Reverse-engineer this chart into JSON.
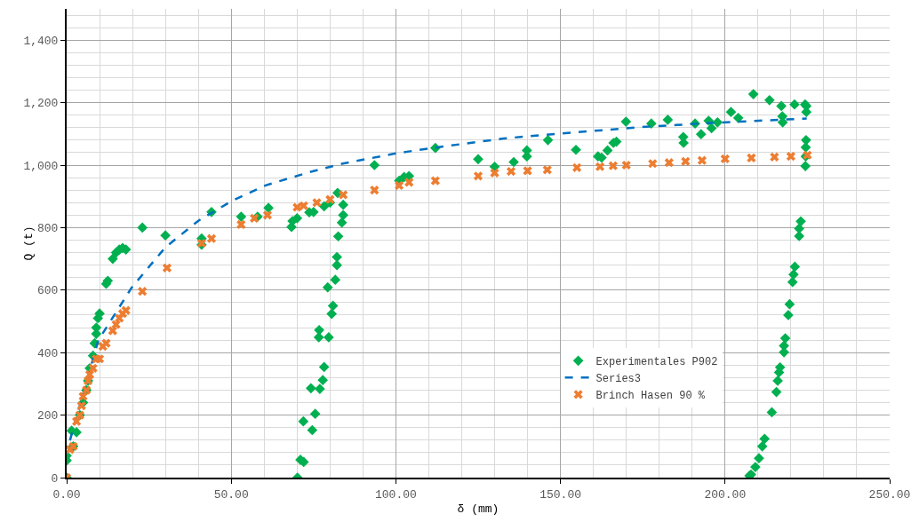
{
  "chart_data": {
    "type": "scatter",
    "xlabel": "δ (mm)",
    "ylabel": "Q (t)",
    "xlim": [
      0,
      250
    ],
    "ylim": [
      0,
      1500
    ],
    "xticks": [
      {
        "value": 0,
        "label": "0.00"
      },
      {
        "value": 50,
        "label": "50.00"
      },
      {
        "value": 100,
        "label": "100.00"
      },
      {
        "value": 150,
        "label": "150.00"
      },
      {
        "value": 200,
        "label": "200.00"
      },
      {
        "value": 250,
        "label": "250.00"
      }
    ],
    "yticks": [
      0,
      {
        "value": 200,
        "label": "200"
      },
      {
        "value": 400,
        "label": "400"
      },
      {
        "value": 600,
        "label": "600"
      },
      {
        "value": 800,
        "label": "800"
      },
      {
        "value": 1000,
        "label": "1,000"
      },
      {
        "value": 1200,
        "label": "1,200"
      },
      {
        "value": 1400,
        "label": "1,400"
      }
    ],
    "grid": true,
    "legend": "bottom right",
    "series": [
      {
        "name": "Experimentales P902",
        "marker": "diamond",
        "color": "#00b050",
        "x": [
          0,
          0,
          0,
          1.5,
          3,
          2,
          4,
          5,
          6,
          6.5,
          7,
          8,
          8.5,
          9,
          9,
          9.5,
          10,
          12,
          12.5,
          14,
          15,
          16,
          17,
          18,
          23,
          30,
          41,
          41,
          44,
          53,
          58,
          61.3,
          68.3,
          68.6,
          70,
          73.7,
          75,
          78.2,
          80,
          82.3,
          84,
          84,
          83.6,
          82.5,
          82.1,
          82.1,
          81.6,
          79.3,
          80.9,
          80.5,
          76.7,
          76.6,
          79.6,
          78.2,
          77.8,
          76.9,
          74.2,
          75.5,
          71.9,
          74.6,
          71,
          72,
          70.1,
          93.5,
          101,
          102.5,
          104,
          112,
          125,
          130,
          135.8,
          139.8,
          139.8,
          146.2,
          154.7,
          161.4,
          162.5,
          164.3,
          166.1,
          167,
          169.9,
          177.6,
          182.6,
          187.3,
          187.4,
          190.9,
          192.7,
          195,
          195.9,
          197.7,
          201.8,
          204,
          208.6,
          213.5,
          217.1,
          217.4,
          217.5,
          221.1,
          224.3,
          224.7,
          224.7,
          224.6,
          224.5,
          224.5,
          224.4,
          223,
          222.5,
          222.5,
          221.2,
          220.8,
          220.5,
          219.6,
          219.2,
          218.3,
          217.9,
          217.9,
          216.7,
          216.4,
          216,
          215.6,
          214.2,
          212,
          211.3,
          210.3,
          209.2,
          207.9,
          207.4
        ],
        "values": [
          0,
          55,
          70,
          150,
          145,
          100,
          200,
          240,
          280,
          310,
          350,
          390,
          430,
          460,
          480,
          510,
          525,
          620,
          630,
          700,
          720,
          730,
          735,
          730,
          800,
          775,
          765,
          745,
          850,
          835,
          835,
          863,
          802,
          821,
          830,
          849,
          850,
          868,
          880,
          911,
          873,
          840,
          816,
          772,
          706,
          680,
          633,
          609,
          550,
          524,
          472,
          449,
          449,
          354,
          312,
          284,
          286,
          204,
          180,
          152,
          57,
          50,
          0,
          1000,
          950,
          962,
          965,
          1055,
          1019,
          995,
          1010,
          1047,
          1028,
          1080,
          1049,
          1028,
          1024,
          1047,
          1071,
          1075,
          1139,
          1133,
          1145,
          1090,
          1071,
          1133,
          1099,
          1142,
          1118,
          1137,
          1170,
          1151,
          1227,
          1208,
          1189,
          1156,
          1137,
          1194,
          1194,
          1189,
          1170,
          1080,
          1057,
          1028,
          997,
          820,
          797,
          773,
          675,
          650,
          626,
          555,
          520,
          446,
          422,
          401,
          353,
          337,
          310,
          274,
          209,
          124,
          100,
          62,
          34,
          10,
          6
        ]
      },
      {
        "name": "Series3",
        "type": "line",
        "marker": "none",
        "line_style": "dashed",
        "color": "#0070c0",
        "x": [
          1,
          9.6,
          19.8,
          30,
          40,
          50.3,
          60.4,
          73.6,
          83.9,
          100.2,
          114.6,
          132.7,
          141.7,
          153.5,
          176,
          196,
          224.8
        ],
        "values": [
          119,
          439,
          609,
          737,
          822,
          886,
          935,
          977,
          1005,
          1038,
          1060,
          1085,
          1094,
          1104,
          1123,
          1135,
          1149
        ]
      },
      {
        "name": "Brinch Hasen 90 %",
        "marker": "cross",
        "color": "#ed7d31",
        "x": [
          0,
          1,
          2,
          3,
          4,
          4.5,
          5,
          6,
          6.5,
          7,
          8,
          9,
          10,
          11,
          12,
          14,
          15,
          16,
          17,
          18,
          23,
          30.5,
          41,
          44,
          53,
          57,
          61,
          70,
          72,
          76,
          80,
          84,
          93.5,
          101,
          104,
          112,
          125,
          130,
          135,
          140,
          146,
          155,
          162,
          166,
          170,
          178,
          183,
          188,
          193,
          200,
          208,
          215,
          220,
          225
        ],
        "values": [
          0,
          90,
          100,
          180,
          200,
          230,
          260,
          280,
          310,
          330,
          350,
          380,
          380,
          420,
          430,
          470,
          490,
          510,
          525,
          535,
          596,
          671,
          750,
          765,
          810,
          830,
          840,
          865,
          870,
          880,
          890,
          905,
          920,
          935,
          945,
          950,
          965,
          975,
          980,
          982,
          985,
          992,
          995,
          998,
          1000,
          1005,
          1008,
          1012,
          1015,
          1020,
          1023,
          1026,
          1028,
          1032
        ]
      }
    ]
  }
}
